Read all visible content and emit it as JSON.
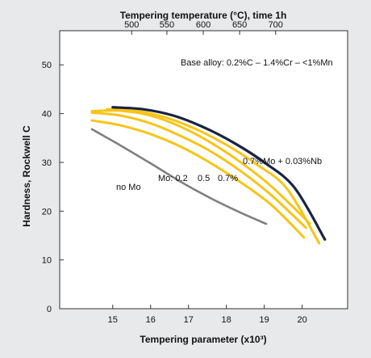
{
  "chart_data": {
    "type": "line",
    "top_axis_title": "Tempering temperature (°C), time 1h",
    "top_ticks": [
      {
        "label": "500",
        "x": 15.5
      },
      {
        "label": "550",
        "x": 16.43
      },
      {
        "label": "600",
        "x": 17.39
      },
      {
        "label": "650",
        "x": 18.35
      },
      {
        "label": "700",
        "x": 19.3
      }
    ],
    "xlabel": "Tempering parameter (x10³)",
    "ylabel": "Hardness, Rockwell C",
    "xlim": [
      13.6,
      21.2
    ],
    "ylim": [
      0,
      57
    ],
    "x_ticks": [
      15,
      16,
      17,
      18,
      19,
      20
    ],
    "y_ticks": [
      0,
      10,
      20,
      30,
      40,
      50
    ],
    "grid": false,
    "annotation_base": "Base alloy: 0.2%C – 1.4%Cr – <1%Mn",
    "annotation_mo": "Mo: 0.2",
    "annotation_mo_values": [
      "0.5",
      "0.7%"
    ],
    "series": [
      {
        "name": "no Mo",
        "color": "#808080",
        "points": [
          [
            14.45,
            36.8
          ],
          [
            15.2,
            33.5
          ],
          [
            16.0,
            29.8
          ],
          [
            16.8,
            26.0
          ],
          [
            17.6,
            22.6
          ],
          [
            18.4,
            19.6
          ],
          [
            19.05,
            17.4
          ]
        ]
      },
      {
        "name": "",
        "color": "#f5c518",
        "points": [
          [
            14.45,
            38.6
          ],
          [
            15.2,
            37.6
          ],
          [
            16.0,
            35.8
          ],
          [
            16.8,
            33.2
          ],
          [
            17.6,
            29.8
          ],
          [
            18.4,
            25.8
          ],
          [
            19.2,
            21.2
          ],
          [
            20.05,
            14.6
          ]
        ]
      },
      {
        "name": "",
        "color": "#f5c518",
        "points": [
          [
            14.45,
            40.2
          ],
          [
            15.2,
            39.6
          ],
          [
            16.0,
            38.0
          ],
          [
            16.8,
            35.4
          ],
          [
            17.6,
            32.2
          ],
          [
            18.4,
            28.1
          ],
          [
            19.2,
            23.2
          ],
          [
            20.1,
            16.6
          ]
        ]
      },
      {
        "name": "",
        "color": "#f5c518",
        "points": [
          [
            14.45,
            40.5
          ],
          [
            15.2,
            40.6
          ],
          [
            16.0,
            39.6
          ],
          [
            16.8,
            37.3
          ],
          [
            17.6,
            34.0
          ],
          [
            18.4,
            29.9
          ],
          [
            19.2,
            25.0
          ],
          [
            20.2,
            17.5
          ]
        ]
      },
      {
        "name": "",
        "color": "#f5c518",
        "points": [
          [
            14.85,
            40.9
          ],
          [
            15.6,
            40.6
          ],
          [
            16.4,
            39.2
          ],
          [
            17.2,
            36.8
          ],
          [
            18.0,
            33.6
          ],
          [
            18.8,
            29.6
          ],
          [
            19.6,
            24.6
          ],
          [
            20.45,
            13.4
          ]
        ]
      },
      {
        "name": "0.7%Mo + 0.03%Nb",
        "color": "#1a2340",
        "points": [
          [
            15.0,
            41.3
          ],
          [
            15.8,
            40.9
          ],
          [
            16.6,
            39.6
          ],
          [
            17.4,
            37.2
          ],
          [
            18.2,
            34.0
          ],
          [
            19.0,
            30.0
          ],
          [
            19.8,
            24.8
          ],
          [
            20.6,
            14.2
          ]
        ]
      }
    ]
  }
}
